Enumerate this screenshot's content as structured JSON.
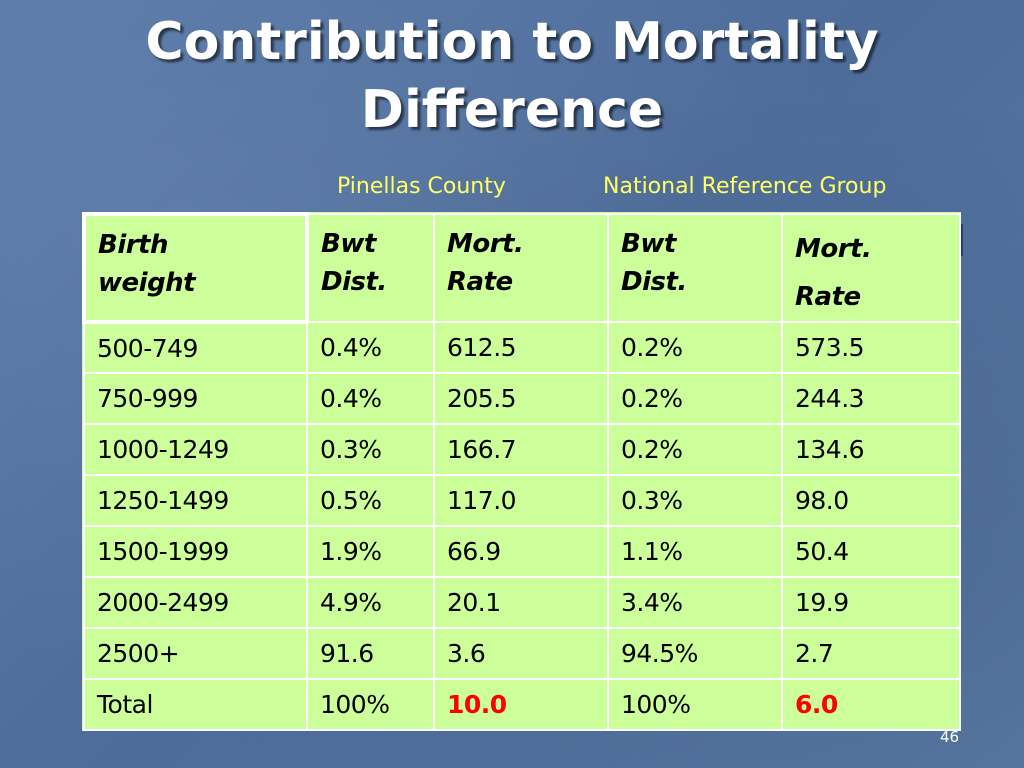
{
  "slide": {
    "title_line1": "Contribution to Mortality",
    "title_line2": "Difference",
    "page_number": "46"
  },
  "groups": {
    "pinellas": "Pinellas County",
    "national": "National Reference Group"
  },
  "table": {
    "headers": {
      "birth_weight": [
        "Birth",
        "weight"
      ],
      "pinellas_dist": [
        "Bwt",
        "Dist."
      ],
      "pinellas_rate": [
        "Mort.",
        "Rate"
      ],
      "national_dist": [
        "Bwt",
        "Dist."
      ],
      "national_rate": [
        "Mort.",
        "Rate"
      ]
    },
    "rows": [
      [
        "500-749",
        "0.4%",
        "612.5",
        "0.2%",
        "573.5"
      ],
      [
        "750-999",
        "0.4%",
        "205.5",
        "0.2%",
        "244.3"
      ],
      [
        "1000-1249",
        "0.3%",
        "166.7",
        "0.2%",
        "134.6"
      ],
      [
        "1250-1499",
        "0.5%",
        "117.0",
        "0.3%",
        "98.0"
      ],
      [
        "1500-1999",
        "1.9%",
        "66.9",
        "1.1%",
        "50.4"
      ],
      [
        "2000-2499",
        "4.9%",
        "20.1",
        "3.4%",
        "19.9"
      ],
      [
        "2500+",
        "91.6",
        "3.6",
        "94.5%",
        "2.7"
      ],
      [
        "Total",
        "100%",
        "10.0",
        "100%",
        "6.0"
      ]
    ]
  },
  "colors": {
    "title_text": "#ffffff",
    "group_label_text": "#ffff66",
    "table_background": "#ccff99",
    "highlight_text": "#ff0000"
  }
}
